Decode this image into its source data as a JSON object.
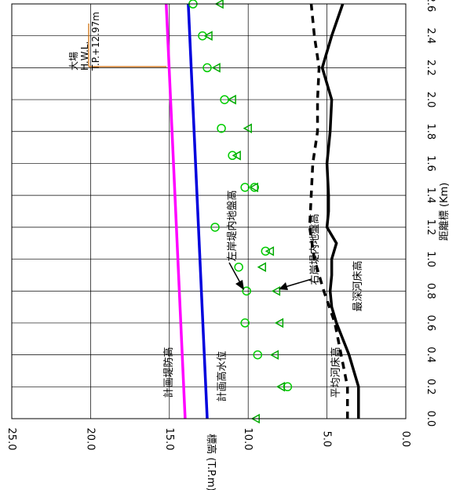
{
  "chart_data": {
    "type": "line",
    "orientation": "rotated-90-clockwise",
    "xlabel": "距離標 (Km)",
    "ylabel": "標高 (T.P.m)",
    "xlim": [
      0.0,
      2.6
    ],
    "ylim": [
      0.0,
      25.0
    ],
    "x_ticks": [
      "0.0",
      "0.2",
      "0.4",
      "0.6",
      "0.8",
      "1.0",
      "1.2",
      "1.4",
      "1.6",
      "1.8",
      "2.0",
      "2.2",
      "2.4",
      "2.6"
    ],
    "y_ticks": [
      "0.0",
      "5.0",
      "10.0",
      "15.0",
      "20.0",
      "25.0"
    ],
    "grid": true,
    "series": [
      {
        "name": "計画堤防高",
        "color": "#ff00ff",
        "style": "solid",
        "x": [
          0.0,
          2.6
        ],
        "y": [
          14.0,
          15.2
        ]
      },
      {
        "name": "計画高水位",
        "color": "#0000dd",
        "style": "solid",
        "x": [
          0.0,
          2.6
        ],
        "y": [
          12.6,
          13.8
        ]
      },
      {
        "name": "平均河床高",
        "color": "#000000",
        "style": "dashed",
        "x": [
          0.0,
          0.2,
          0.4,
          0.6,
          0.8,
          1.0,
          1.2,
          1.4,
          1.6,
          1.8,
          2.0,
          2.2,
          2.4,
          2.6
        ],
        "y": [
          3.7,
          3.7,
          4.1,
          4.5,
          5.2,
          5.8,
          6.1,
          6.0,
          5.9,
          5.6,
          5.6,
          5.5,
          5.8,
          6.0
        ]
      },
      {
        "name": "最深河床高",
        "color": "#000000",
        "style": "solid",
        "x": [
          0.0,
          0.2,
          0.3,
          0.4,
          0.5,
          0.6,
          0.7,
          0.8,
          0.9,
          1.0,
          1.1,
          1.2,
          1.3,
          1.4,
          1.6,
          1.8,
          2.0,
          2.2,
          2.4,
          2.6
        ],
        "y": [
          3.0,
          3.0,
          3.3,
          3.6,
          4.0,
          4.4,
          4.7,
          4.8,
          4.7,
          4.7,
          4.4,
          5.0,
          4.9,
          4.9,
          5.0,
          4.8,
          4.7,
          5.3,
          4.7,
          4.0
        ]
      },
      {
        "name": "左岸堤内地盤高",
        "color": "#00cc00",
        "marker": "circle",
        "x": [
          0.2,
          0.4,
          0.6,
          0.8,
          0.95,
          1.05,
          1.2,
          1.45,
          1.45,
          1.65,
          1.82,
          2.0,
          2.2,
          2.4,
          2.6
        ],
        "y": [
          7.5,
          9.4,
          10.2,
          10.1,
          10.6,
          8.9,
          12.1,
          9.6,
          10.2,
          11.0,
          11.7,
          11.5,
          12.6,
          12.9,
          13.5
        ]
      },
      {
        "name": "右岸堤内地盤高",
        "color": "#00aa00",
        "marker": "triangle",
        "x": [
          0.0,
          0.2,
          0.4,
          0.6,
          0.8,
          0.95,
          1.05,
          1.45,
          1.65,
          1.82,
          2.0,
          2.2,
          2.4,
          2.6
        ],
        "y": [
          9.5,
          7.9,
          8.3,
          8.0,
          8.2,
          9.1,
          8.6,
          9.6,
          10.7,
          10.0,
          11.0,
          12.0,
          12.5,
          11.8
        ]
      }
    ],
    "annotations": [
      {
        "text": "大場"
      },
      {
        "text": "H.W.L."
      },
      {
        "text": "T.P.+12.97m"
      }
    ]
  }
}
